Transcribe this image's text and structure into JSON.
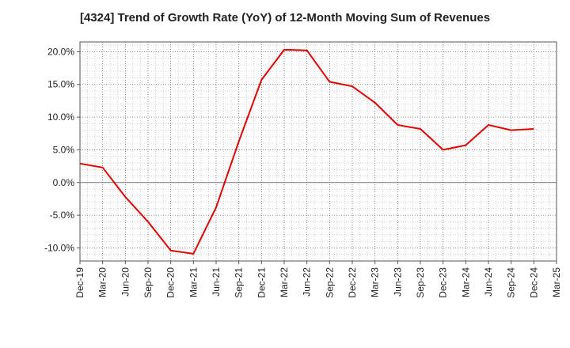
{
  "chart_data": {
    "type": "line",
    "title": "[4324]  Trend of Growth Rate (YoY) of 12-Month Moving Sum of Revenues",
    "xlabel": "",
    "ylabel": "",
    "x_ticks": [
      "Dec-19",
      "Mar-20",
      "Jun-20",
      "Sep-20",
      "Dec-20",
      "Mar-21",
      "Jun-21",
      "Sep-21",
      "Dec-21",
      "Mar-22",
      "Jun-22",
      "Sep-22",
      "Dec-22",
      "Mar-23",
      "Jun-23",
      "Sep-23",
      "Dec-23",
      "Mar-24",
      "Jun-24",
      "Sep-24",
      "Dec-24",
      "Mar-25"
    ],
    "y_ticks": [
      "20.0%",
      "15.0%",
      "10.0%",
      "5.0%",
      "0.0%",
      "-5.0%",
      "-10.0%"
    ],
    "y_tick_values": [
      20,
      15,
      10,
      5,
      0,
      -5,
      -10
    ],
    "ylim": [
      -12,
      21.5
    ],
    "grid": true,
    "series": [
      {
        "color": "#e00000",
        "x": [
          "Dec-19",
          "Mar-20",
          "Jun-20",
          "Sep-20",
          "Dec-20",
          "Mar-21",
          "Jun-21",
          "Sep-21",
          "Dec-21",
          "Mar-22",
          "Jun-22",
          "Sep-22",
          "Dec-22",
          "Mar-23",
          "Jun-23",
          "Sep-23",
          "Dec-23",
          "Mar-24",
          "Jun-24",
          "Sep-24",
          "Dec-24"
        ],
        "values": [
          2.9,
          2.3,
          -2.2,
          -6.0,
          -10.4,
          -10.9,
          -3.8,
          6.3,
          15.7,
          20.3,
          20.2,
          15.4,
          14.7,
          12.2,
          8.8,
          8.2,
          5.0,
          5.7,
          8.8,
          8.0,
          8.2
        ]
      }
    ]
  }
}
